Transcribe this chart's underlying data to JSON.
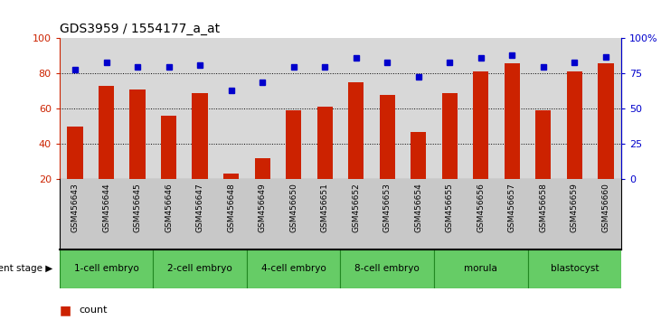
{
  "title": "GDS3959 / 1554177_a_at",
  "samples": [
    "GSM456643",
    "GSM456644",
    "GSM456645",
    "GSM456646",
    "GSM456647",
    "GSM456648",
    "GSM456649",
    "GSM456650",
    "GSM456651",
    "GSM456652",
    "GSM456653",
    "GSM456654",
    "GSM456655",
    "GSM456656",
    "GSM456657",
    "GSM456658",
    "GSM456659",
    "GSM456660"
  ],
  "counts": [
    50,
    73,
    71,
    56,
    69,
    23,
    32,
    59,
    61,
    75,
    68,
    47,
    69,
    81,
    86,
    59,
    81,
    86
  ],
  "percentile_ranks": [
    78,
    83,
    80,
    80,
    81,
    63,
    69,
    80,
    80,
    86,
    83,
    73,
    83,
    86,
    88,
    80,
    83,
    87
  ],
  "stages": [
    {
      "label": "1-cell embryo",
      "start": 0,
      "end": 3
    },
    {
      "label": "2-cell embryo",
      "start": 3,
      "end": 6
    },
    {
      "label": "4-cell embryo",
      "start": 6,
      "end": 9
    },
    {
      "label": "8-cell embryo",
      "start": 9,
      "end": 12
    },
    {
      "label": "morula",
      "start": 12,
      "end": 15
    },
    {
      "label": "blastocyst",
      "start": 15,
      "end": 18
    }
  ],
  "bar_color": "#CC2200",
  "dot_color": "#0000CC",
  "plot_bg_color": "#D8D8D8",
  "tick_bg_color": "#C8C8C8",
  "stage_color": "#66CC66",
  "stage_border_color": "#228822",
  "ylim_left": [
    20,
    100
  ],
  "ylim_right": [
    0,
    100
  ],
  "right_ticks": [
    0,
    25,
    50,
    75,
    100
  ],
  "right_tick_labels": [
    "0",
    "25",
    "50",
    "75",
    "100%"
  ],
  "left_ticks": [
    20,
    40,
    60,
    80,
    100
  ],
  "grid_lines": [
    40,
    60,
    80
  ],
  "development_stage_label": "development stage"
}
